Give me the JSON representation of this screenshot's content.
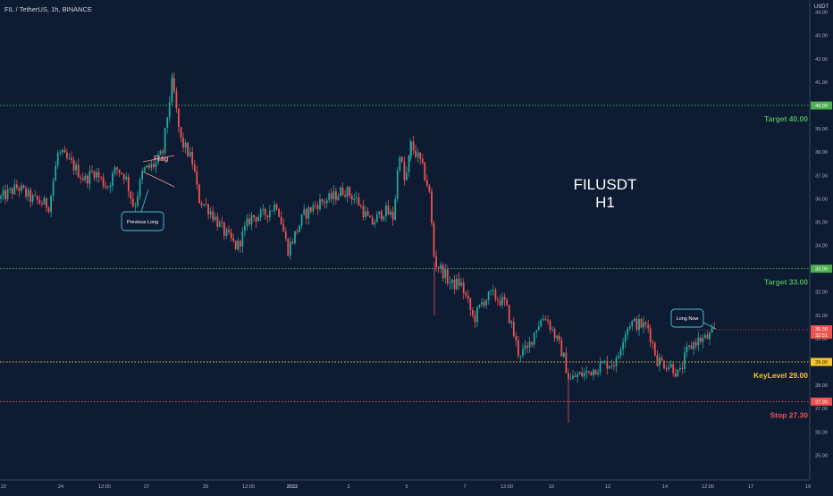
{
  "symbol_header": "FIL / TetherUS, 1h, BINANCE",
  "currency_label": "USDT",
  "colors": {
    "background": "#0d1b33",
    "up": "#26a69a",
    "down": "#ef5350",
    "target": "#4caf50",
    "keylevel": "#f7c52b",
    "stop": "#ef5350",
    "axis_text": "#b2b5be",
    "annotation": "#4fc3d9"
  },
  "chart_data": {
    "type": "candlestick",
    "title": "FILUSDT",
    "subtitle": "H1",
    "ylim": [
      24.2,
      44.3
    ],
    "y_ticks": [
      25.0,
      26.0,
      27.0,
      28.0,
      29.0,
      30.0,
      31.0,
      32.0,
      33.0,
      34.0,
      35.0,
      36.0,
      37.0,
      38.0,
      39.0,
      40.0,
      41.0,
      42.0,
      43.0,
      44.0
    ],
    "x_tick_labels": [
      "22",
      "24",
      "12:00",
      "27",
      "29",
      "12:00",
      "2022",
      "3",
      "5",
      "7",
      "12:00",
      "10",
      "12",
      "14",
      "12:00",
      "17",
      "19"
    ],
    "price_path": [
      [
        0,
        36.0
      ],
      [
        20,
        36.5
      ],
      [
        35,
        36.0
      ],
      [
        55,
        35.7
      ],
      [
        65,
        38.0
      ],
      [
        80,
        37.5
      ],
      [
        95,
        36.8
      ],
      [
        105,
        37.2
      ],
      [
        120,
        36.5
      ],
      [
        130,
        37.3
      ],
      [
        140,
        37.0
      ],
      [
        150,
        35.6
      ],
      [
        160,
        37.2
      ],
      [
        175,
        37.5
      ],
      [
        182,
        38.0
      ],
      [
        188,
        39.8
      ],
      [
        193,
        41.1
      ],
      [
        197,
        39.8
      ],
      [
        202,
        38.5
      ],
      [
        210,
        38.0
      ],
      [
        216,
        37.5
      ],
      [
        222,
        36.0
      ],
      [
        235,
        35.5
      ],
      [
        250,
        34.6
      ],
      [
        265,
        33.9
      ],
      [
        280,
        35.2
      ],
      [
        295,
        35.3
      ],
      [
        310,
        35.8
      ],
      [
        322,
        33.8
      ],
      [
        340,
        35.3
      ],
      [
        355,
        35.8
      ],
      [
        370,
        36.0
      ],
      [
        385,
        36.4
      ],
      [
        400,
        35.9
      ],
      [
        415,
        34.9
      ],
      [
        430,
        35.5
      ],
      [
        440,
        35.2
      ],
      [
        447,
        38.1
      ],
      [
        453,
        36.6
      ],
      [
        460,
        38.3
      ],
      [
        470,
        37.6
      ],
      [
        480,
        36.4
      ],
      [
        486,
        33.3
      ],
      [
        495,
        32.9
      ],
      [
        505,
        32.3
      ],
      [
        515,
        32.4
      ],
      [
        522,
        31.7
      ],
      [
        530,
        30.8
      ],
      [
        540,
        31.6
      ],
      [
        550,
        31.9
      ],
      [
        565,
        31.5
      ],
      [
        572,
        30.6
      ],
      [
        580,
        29.4
      ],
      [
        590,
        29.5
      ],
      [
        600,
        30.5
      ],
      [
        610,
        31.0
      ],
      [
        620,
        30.2
      ],
      [
        630,
        29.3
      ],
      [
        637,
        28.2
      ],
      [
        645,
        28.4
      ],
      [
        655,
        28.5
      ],
      [
        665,
        28.7
      ],
      [
        675,
        28.9
      ],
      [
        690,
        29.0
      ],
      [
        697,
        30.1
      ],
      [
        705,
        30.7
      ],
      [
        715,
        30.6
      ],
      [
        725,
        30.5
      ],
      [
        735,
        29.1
      ],
      [
        745,
        28.9
      ],
      [
        752,
        28.8
      ],
      [
        760,
        28.4
      ],
      [
        768,
        29.4
      ],
      [
        778,
        29.9
      ],
      [
        790,
        30.0
      ],
      [
        800,
        30.3
      ]
    ],
    "annotations": [
      "Flag",
      "Previous Long",
      "Long Now"
    ],
    "levels": [
      {
        "name": "Target",
        "value": 40.0,
        "label": "Target 40.00",
        "tag": "40.00",
        "kind": "target"
      },
      {
        "name": "Target",
        "value": 33.0,
        "label": "Target 33.00",
        "tag": "33.00",
        "kind": "target"
      },
      {
        "name": "KeyLevel",
        "value": 29.0,
        "label": "KeyLevel 29.00",
        "tag": "29.00",
        "kind": "keylevel"
      },
      {
        "name": "Stop",
        "value": 27.3,
        "label": "Stop 27.30",
        "tag": "27.30",
        "kind": "stop"
      }
    ],
    "last_price": 30.38,
    "last_price_label": "30.38",
    "countdown_label": "32:51"
  }
}
